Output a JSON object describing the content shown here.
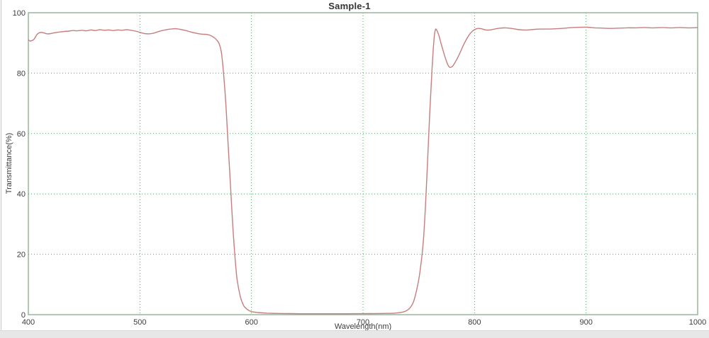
{
  "chart_data": {
    "type": "line",
    "title": "Sample-1",
    "xlabel": "Wavelength(nm)",
    "ylabel": "Transmittance(%)",
    "xlim": [
      400,
      1000
    ],
    "ylim": [
      0,
      100
    ],
    "x_ticks": [
      400,
      500,
      600,
      700,
      800,
      900,
      1000
    ],
    "y_ticks": [
      0,
      20,
      40,
      60,
      80,
      100
    ],
    "grid": true,
    "legend": false,
    "colors": {
      "line": "#c87d7d",
      "frame": "#85ab8b",
      "grid": "#55a068",
      "text": "#3c3c3c",
      "background": "#ffffff",
      "window_edge": "#e7e7e7"
    },
    "series": [
      {
        "name": "Sample-1",
        "x": [
          400,
          402,
          405,
          408,
          411,
          414,
          417,
          420,
          424,
          428,
          432,
          436,
          440,
          444,
          448,
          452,
          456,
          460,
          464,
          468,
          472,
          476,
          480,
          484,
          488,
          492,
          496,
          500,
          504,
          508,
          512,
          516,
          520,
          524,
          528,
          532,
          536,
          540,
          544,
          548,
          552,
          556,
          560,
          563,
          566,
          569,
          571,
          573,
          575,
          577,
          579,
          581,
          583,
          585,
          587,
          590,
          593,
          596,
          600,
          606,
          614,
          624,
          636,
          650,
          664,
          678,
          692,
          706,
          718,
          728,
          735,
          739,
          742,
          745,
          748,
          751,
          754,
          756,
          758,
          760,
          762,
          763,
          764,
          765,
          766,
          768,
          770,
          772,
          774,
          776,
          778,
          780,
          782,
          785,
          788,
          791,
          794,
          797,
          800,
          803,
          806,
          810,
          814,
          818,
          823,
          828,
          833,
          838,
          843,
          848,
          854,
          860,
          867,
          874,
          881,
          888,
          895,
          901,
          908,
          915,
          922,
          929,
          936,
          944,
          952,
          960,
          968,
          976,
          984,
          992,
          1000
        ],
        "y": [
          91.0,
          90.6,
          91.2,
          92.9,
          93.5,
          93.3,
          93.0,
          93.1,
          93.4,
          93.6,
          93.8,
          93.9,
          94.1,
          94.0,
          94.2,
          94.0,
          94.3,
          94.1,
          94.4,
          94.2,
          94.3,
          94.1,
          94.3,
          94.2,
          94.4,
          94.2,
          93.9,
          93.5,
          93.1,
          93.0,
          93.2,
          93.7,
          94.1,
          94.4,
          94.6,
          94.7,
          94.5,
          94.2,
          93.8,
          93.4,
          93.1,
          92.9,
          92.8,
          92.5,
          91.9,
          90.9,
          89.8,
          87.0,
          80.0,
          70.0,
          57.0,
          44.0,
          31.0,
          20.0,
          12.0,
          6.0,
          3.0,
          1.8,
          1.0,
          0.7,
          0.5,
          0.4,
          0.35,
          0.3,
          0.3,
          0.3,
          0.32,
          0.35,
          0.4,
          0.5,
          0.8,
          1.3,
          2.2,
          4.0,
          8.0,
          14.0,
          24.0,
          36.0,
          52.0,
          68.0,
          82.0,
          88.0,
          92.5,
          94.5,
          94.3,
          92.5,
          89.8,
          87.2,
          84.8,
          82.8,
          81.9,
          82.2,
          83.2,
          85.2,
          87.6,
          90.0,
          92.0,
          93.5,
          94.4,
          94.8,
          94.7,
          94.3,
          94.3,
          94.6,
          94.9,
          95.0,
          94.8,
          94.5,
          94.3,
          94.3,
          94.5,
          94.6,
          94.6,
          94.7,
          94.9,
          95.1,
          95.2,
          95.2,
          95.0,
          94.9,
          94.8,
          94.9,
          95.0,
          95.0,
          95.1,
          95.0,
          95.1,
          95.0,
          95.1,
          95.0,
          95.1
        ]
      }
    ]
  }
}
